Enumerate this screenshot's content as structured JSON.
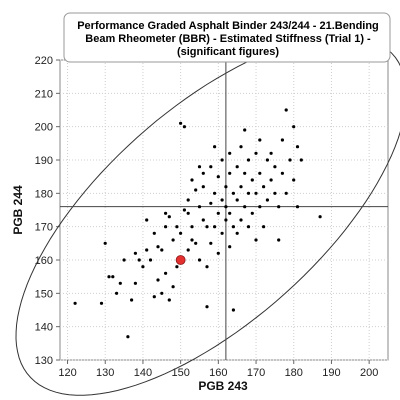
{
  "chart_data": {
    "type": "scatter",
    "title_lines": [
      "Performance Graded Asphalt Binder 243/244 - 21.Bending",
      "Beam Rheometer (BBR) - Estimated Stiffness (Trial 1) -",
      "(significant figures)"
    ],
    "xlabel": "PGB 243",
    "ylabel": "PGB 244",
    "xlim": [
      118,
      205
    ],
    "ylim": [
      130,
      220
    ],
    "xticks": [
      120,
      130,
      140,
      150,
      160,
      170,
      180,
      190,
      200
    ],
    "yticks": [
      130,
      140,
      150,
      160,
      170,
      180,
      190,
      200,
      210,
      220
    ],
    "reference_lines": {
      "x": 162,
      "y": 176
    },
    "highlight_point": {
      "x": 150,
      "y": 160,
      "color": "#e53030"
    },
    "point_color": "#000000",
    "ellipse_color": "#333333",
    "points": [
      [
        122,
        147
      ],
      [
        129,
        147
      ],
      [
        130,
        165
      ],
      [
        131,
        155
      ],
      [
        132,
        155
      ],
      [
        133,
        150
      ],
      [
        134,
        153
      ],
      [
        135,
        160
      ],
      [
        136,
        137
      ],
      [
        137,
        148
      ],
      [
        138,
        153
      ],
      [
        139,
        160
      ],
      [
        140,
        158
      ],
      [
        141,
        172
      ],
      [
        141,
        163
      ],
      [
        142,
        160
      ],
      [
        143,
        149
      ],
      [
        143,
        168
      ],
      [
        144,
        154
      ],
      [
        144,
        164
      ],
      [
        145,
        163
      ],
      [
        145,
        150
      ],
      [
        146,
        170
      ],
      [
        146,
        174
      ],
      [
        147,
        148
      ],
      [
        147,
        173
      ],
      [
        148,
        166
      ],
      [
        148,
        152
      ],
      [
        149,
        158
      ],
      [
        149,
        170
      ],
      [
        150,
        168
      ],
      [
        150,
        201
      ],
      [
        151,
        200
      ],
      [
        151,
        175
      ],
      [
        152,
        163
      ],
      [
        152,
        178
      ],
      [
        153,
        170
      ],
      [
        153,
        166
      ],
      [
        154,
        181
      ],
      [
        154,
        165
      ],
      [
        155,
        188
      ],
      [
        155,
        176
      ],
      [
        155,
        160
      ],
      [
        156,
        172
      ],
      [
        156,
        182
      ],
      [
        157,
        170
      ],
      [
        157,
        158
      ],
      [
        158,
        188
      ],
      [
        158,
        177
      ],
      [
        158,
        165
      ],
      [
        159,
        180
      ],
      [
        159,
        170
      ],
      [
        160,
        185
      ],
      [
        160,
        174
      ],
      [
        160,
        162
      ],
      [
        161,
        190
      ],
      [
        161,
        178
      ],
      [
        161,
        168
      ],
      [
        162,
        182
      ],
      [
        162,
        172
      ],
      [
        162,
        176
      ],
      [
        163,
        186
      ],
      [
        163,
        174
      ],
      [
        163,
        164
      ],
      [
        164,
        180
      ],
      [
        164,
        170
      ],
      [
        165,
        188
      ],
      [
        165,
        178
      ],
      [
        165,
        168
      ],
      [
        166,
        182
      ],
      [
        166,
        172
      ],
      [
        166,
        194
      ],
      [
        167,
        186
      ],
      [
        167,
        176
      ],
      [
        168,
        180
      ],
      [
        168,
        170
      ],
      [
        168,
        190
      ],
      [
        169,
        184
      ],
      [
        169,
        174
      ],
      [
        170,
        192
      ],
      [
        170,
        180
      ],
      [
        170,
        166
      ],
      [
        171,
        186
      ],
      [
        171,
        176
      ],
      [
        172,
        182
      ],
      [
        172,
        170
      ],
      [
        173,
        190
      ],
      [
        173,
        178
      ],
      [
        174,
        184
      ],
      [
        174,
        192
      ],
      [
        175,
        180
      ],
      [
        175,
        188
      ],
      [
        176,
        176
      ],
      [
        177,
        186
      ],
      [
        177,
        196
      ],
      [
        178,
        180
      ],
      [
        178,
        205
      ],
      [
        179,
        190
      ],
      [
        180,
        200
      ],
      [
        180,
        184
      ],
      [
        181,
        176
      ],
      [
        181,
        194
      ],
      [
        182,
        190
      ],
      [
        187,
        173
      ],
      [
        138,
        162
      ],
      [
        146,
        156
      ],
      [
        152,
        174
      ],
      [
        157,
        146
      ],
      [
        164,
        145
      ],
      [
        176,
        166
      ],
      [
        159,
        194
      ],
      [
        167,
        199
      ],
      [
        171,
        196
      ],
      [
        156,
        186
      ],
      [
        153,
        184
      ],
      [
        163,
        192
      ]
    ]
  }
}
